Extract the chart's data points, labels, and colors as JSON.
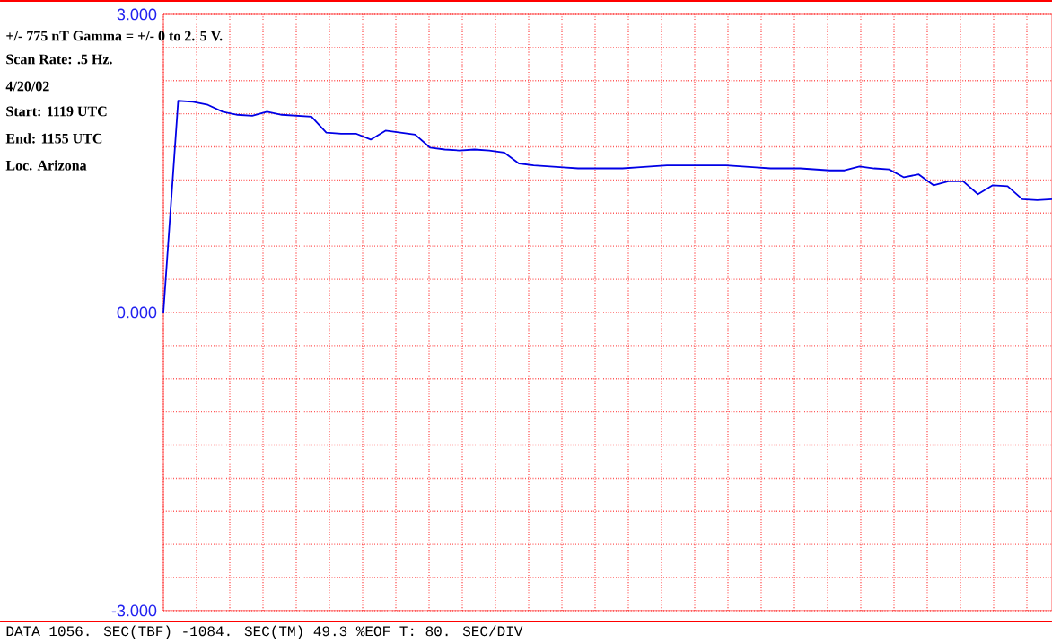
{
  "chart_data": {
    "type": "line",
    "color": "#0000e6",
    "categories": [
      null,
      null,
      null,
      null,
      null,
      null,
      null,
      null,
      null,
      null,
      null,
      null,
      null,
      null,
      null,
      null,
      null,
      null,
      null,
      null,
      null,
      null,
      null,
      null,
      null,
      null,
      null,
      null,
      null,
      null,
      null,
      null,
      null,
      null,
      null,
      null,
      null,
      null,
      null,
      null,
      null,
      null,
      null,
      null,
      null,
      null,
      null,
      null,
      null,
      null,
      null,
      null,
      null,
      null,
      null,
      null,
      null,
      null,
      null,
      null,
      null
    ],
    "values": [
      0,
      2.13,
      2.12,
      2.09,
      2.02,
      1.99,
      1.98,
      2.02,
      1.99,
      1.98,
      1.97,
      1.81,
      1.8,
      1.8,
      1.74,
      1.83,
      1.81,
      1.79,
      1.66,
      1.64,
      1.63,
      1.64,
      1.63,
      1.61,
      1.5,
      1.48,
      1.47,
      1.46,
      1.45,
      1.45,
      1.45,
      1.45,
      1.46,
      1.47,
      1.48,
      1.48,
      1.48,
      1.48,
      1.48,
      1.47,
      1.46,
      1.45,
      1.45,
      1.45,
      1.44,
      1.43,
      1.43,
      1.47,
      1.45,
      1.44,
      1.36,
      1.39,
      1.28,
      1.32,
      1.32,
      1.19,
      1.28,
      1.27,
      1.14,
      1.13,
      1.14
    ],
    "ylim": [
      -3,
      3
    ],
    "yticks": [
      {
        "value": 3,
        "label": "3.000"
      },
      {
        "value": 2.667,
        "label": null
      },
      {
        "value": 2.333,
        "label": null
      },
      {
        "value": 2,
        "label": null
      },
      {
        "value": 1.667,
        "label": null
      },
      {
        "value": 1.333,
        "label": null
      },
      {
        "value": 1,
        "label": null
      },
      {
        "value": 0.667,
        "label": null
      },
      {
        "value": 0.333,
        "label": null
      },
      {
        "value": 0,
        "label": "0.000"
      },
      {
        "value": -0.333,
        "label": null
      },
      {
        "value": -0.667,
        "label": null
      },
      {
        "value": -1,
        "label": null
      },
      {
        "value": -1.333,
        "label": null
      },
      {
        "value": -1.667,
        "label": null
      },
      {
        "value": -2,
        "label": null
      },
      {
        "value": -2.333,
        "label": null
      },
      {
        "value": -2.667,
        "label": null
      },
      {
        "value": -3,
        "label": "-3.000"
      }
    ],
    "grid": true,
    "marker": "none",
    "line_style": "solid",
    "annotations": [
      "+/- 775 nT Gamma = +/- 0 to 2. 5 V.",
      "Scan Rate: .5 Hz.",
      "4/20/02",
      "Start: 1119 UTC",
      "End: 1155 UTC",
      "Loc. Arizona",
      "DATA 1056. SEC(TBF) -1084. SEC(TM) 49.3 %EOF T: 80. SEC/DIV"
    ]
  }
}
